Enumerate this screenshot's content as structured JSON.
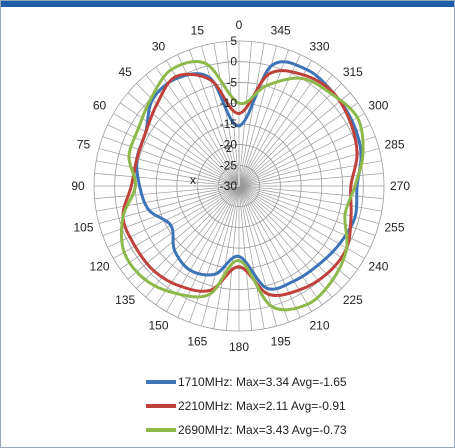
{
  "chart_data": {
    "type": "polar-line",
    "title": "",
    "angle_labels": [
      "0",
      "15",
      "30",
      "45",
      "60",
      "75",
      "90",
      "105",
      "120",
      "135",
      "150",
      "165",
      "180",
      "195",
      "210",
      "225",
      "240",
      "255",
      "270",
      "285",
      "300",
      "315",
      "330",
      "345"
    ],
    "radial_labels": [
      "5",
      "0",
      "-5",
      "-10",
      "-15",
      "-20",
      "-25",
      "-30"
    ],
    "radial_range": [
      -30,
      5
    ],
    "radial_step": 5,
    "angle_step": 15,
    "axis_letters": {
      "z": "z",
      "x": "x"
    },
    "angles_deg": [
      0,
      15,
      30,
      45,
      60,
      75,
      90,
      105,
      120,
      135,
      150,
      165,
      180,
      195,
      210,
      225,
      240,
      255,
      270,
      285,
      300,
      315,
      330,
      345
    ],
    "series": [
      {
        "name": "1710MHz: Max=3.34 Avg=-1.65",
        "color": "#3d74b8",
        "values": [
          -15.5,
          -3,
          0,
          -0.5,
          -4,
          -4.5,
          -6,
          -7.5,
          -11,
          -8,
          -6.5,
          -8,
          -13,
          -4.5,
          -3.5,
          -3,
          -2,
          -1,
          -1.5,
          0.5,
          1.5,
          2,
          2.5,
          0
        ]
      },
      {
        "name": "2210MHz: Max=2.11 Avg=-0.91",
        "color": "#c0413b",
        "values": [
          -12.5,
          -3.5,
          0.5,
          -2,
          -4,
          -4.5,
          -4,
          -1,
          -1,
          -1,
          -2,
          -4,
          -10.5,
          -3,
          -1,
          0,
          0,
          -2,
          -3,
          -0.5,
          1,
          2,
          1,
          -2
        ]
      },
      {
        "name": "2690MHz: Max=3.43 Avg=-0.73",
        "color": "#8fb84a",
        "values": [
          -10,
          0.5,
          2.5,
          0,
          -2,
          -2.5,
          -5,
          -1,
          2,
          2,
          0,
          -3,
          -12,
          0,
          3,
          2,
          0,
          -3.5,
          -2,
          1,
          3,
          1.5,
          0,
          -5
        ]
      }
    ]
  }
}
